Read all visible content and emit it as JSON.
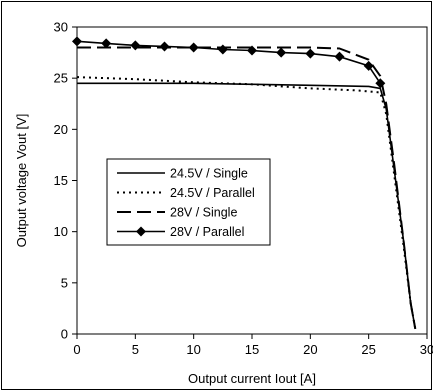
{
  "chart_data": {
    "type": "line",
    "title": "",
    "xlabel": "Output current Iout  [A]",
    "ylabel": "Output voltage Vout [V]",
    "xlim": [
      0,
      30
    ],
    "ylim": [
      0,
      30
    ],
    "xticks": [
      0,
      5,
      10,
      15,
      20,
      25,
      30
    ],
    "yticks": [
      0,
      5,
      10,
      15,
      20,
      25,
      30
    ],
    "grid": false,
    "legend_position": "left-center",
    "series": [
      {
        "name": "24.5V / Single",
        "style": "solid",
        "marker": "none",
        "points": [
          [
            0,
            24.5
          ],
          [
            10,
            24.5
          ],
          [
            15,
            24.4
          ],
          [
            20,
            24.3
          ],
          [
            25,
            24.2
          ],
          [
            26,
            24.0
          ],
          [
            26.5,
            22.0
          ],
          [
            27.2,
            16.0
          ],
          [
            28.0,
            9.0
          ],
          [
            28.6,
            3.0
          ],
          [
            29.0,
            0.5
          ]
        ]
      },
      {
        "name": "24.5V / Parallel",
        "style": "dotted",
        "marker": "none",
        "points": [
          [
            0,
            25.1
          ],
          [
            5,
            24.9
          ],
          [
            10,
            24.6
          ],
          [
            15,
            24.4
          ],
          [
            20,
            24.0
          ],
          [
            24,
            23.8
          ],
          [
            26,
            23.6
          ],
          [
            26.5,
            21.5
          ],
          [
            27.2,
            15.5
          ],
          [
            28.0,
            8.5
          ],
          [
            28.6,
            3.0
          ],
          [
            29.0,
            0.5
          ]
        ]
      },
      {
        "name": "28V / Single",
        "style": "dashed",
        "marker": "none",
        "points": [
          [
            0,
            28.0
          ],
          [
            5,
            28.0
          ],
          [
            10,
            28.0
          ],
          [
            15,
            28.0
          ],
          [
            20,
            28.0
          ],
          [
            22.5,
            27.9
          ],
          [
            25,
            26.8
          ],
          [
            26,
            25.2
          ],
          [
            26.5,
            22.5
          ],
          [
            27.2,
            16.5
          ],
          [
            28.0,
            9.0
          ],
          [
            28.6,
            3.0
          ],
          [
            29.0,
            0.5
          ]
        ]
      },
      {
        "name": "28V / Parallel",
        "style": "solid",
        "marker": "diamond",
        "points": [
          [
            0,
            28.6
          ],
          [
            2.5,
            28.4
          ],
          [
            5,
            28.2
          ],
          [
            7.5,
            28.1
          ],
          [
            10,
            28.0
          ],
          [
            12.5,
            27.8
          ],
          [
            15,
            27.7
          ],
          [
            17.5,
            27.5
          ],
          [
            20,
            27.4
          ],
          [
            22.5,
            27.1
          ],
          [
            25,
            26.2
          ],
          [
            26,
            24.5
          ]
        ]
      }
    ]
  }
}
